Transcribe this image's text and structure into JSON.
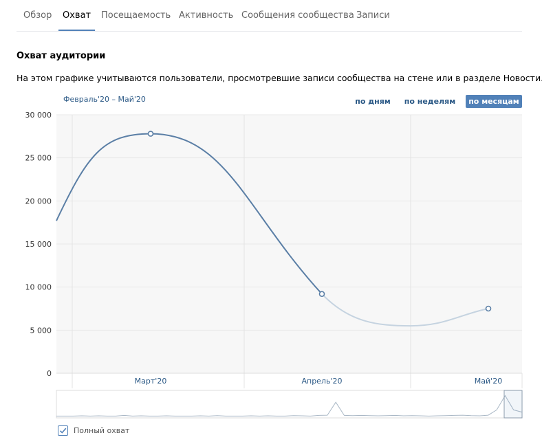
{
  "tabs": [
    {
      "label": "Обзор",
      "active": false
    },
    {
      "label": "Охват",
      "active": true
    },
    {
      "label": "Посещаемость",
      "active": false
    },
    {
      "label": "Активность",
      "active": false
    },
    {
      "label": "Сообщения сообщества",
      "active": false
    },
    {
      "label": "Записи",
      "active": false
    }
  ],
  "section": {
    "title": "Охват аудитории",
    "description": "На этом графике учитываются пользователи, просмотревшие записи сообщества на стене или в разделе Новости."
  },
  "period_range": "Февраль'20 – Май'20",
  "period_buttons": [
    {
      "label": "по дням",
      "active": false
    },
    {
      "label": "по неделям",
      "active": false
    },
    {
      "label": "по месяцам",
      "active": true
    }
  ],
  "legend": {
    "label": "Полный охват",
    "checked": true
  },
  "colors": {
    "accent": "#5181b8",
    "line": "#5b7fa6",
    "line_projection": "#c5d3e0",
    "plot_bg": "#f7f7f7",
    "link": "#2a5885"
  },
  "chart_data": {
    "type": "line",
    "title": "Охват аудитории",
    "x": [
      "Март'20",
      "Апрель'20",
      "Май'20"
    ],
    "series": [
      {
        "name": "Полный охват",
        "values": [
          27800,
          9200,
          7500
        ]
      }
    ],
    "curve_left_edge_value": 17700,
    "curve_min_value": 5500,
    "ylim": [
      0,
      30000
    ],
    "yticks": [
      0,
      5000,
      10000,
      15000,
      20000,
      25000,
      30000
    ],
    "ytick_labels": [
      "0",
      "5 000",
      "10 000",
      "15 000",
      "20 000",
      "25 000",
      "30 000"
    ],
    "grid": true,
    "navigator_series": [
      0.02,
      0.02,
      0.02,
      0.03,
      0.02,
      0.03,
      0.02,
      0.02,
      0.05,
      0.02,
      0.03,
      0.02,
      0.02,
      0.03,
      0.02,
      0.02,
      0.02,
      0.03,
      0.02,
      0.04,
      0.02,
      0.02,
      0.02,
      0.03,
      0.02,
      0.03,
      0.02,
      0.02,
      0.04,
      0.03,
      0.02,
      0.05,
      0.06,
      0.65,
      0.05,
      0.04,
      0.05,
      0.04,
      0.03,
      0.04,
      0.05,
      0.03,
      0.04,
      0.03,
      0.02,
      0.03,
      0.04,
      0.05,
      0.06,
      0.04,
      0.03,
      0.06,
      0.3,
      0.95,
      0.3,
      0.2
    ]
  }
}
